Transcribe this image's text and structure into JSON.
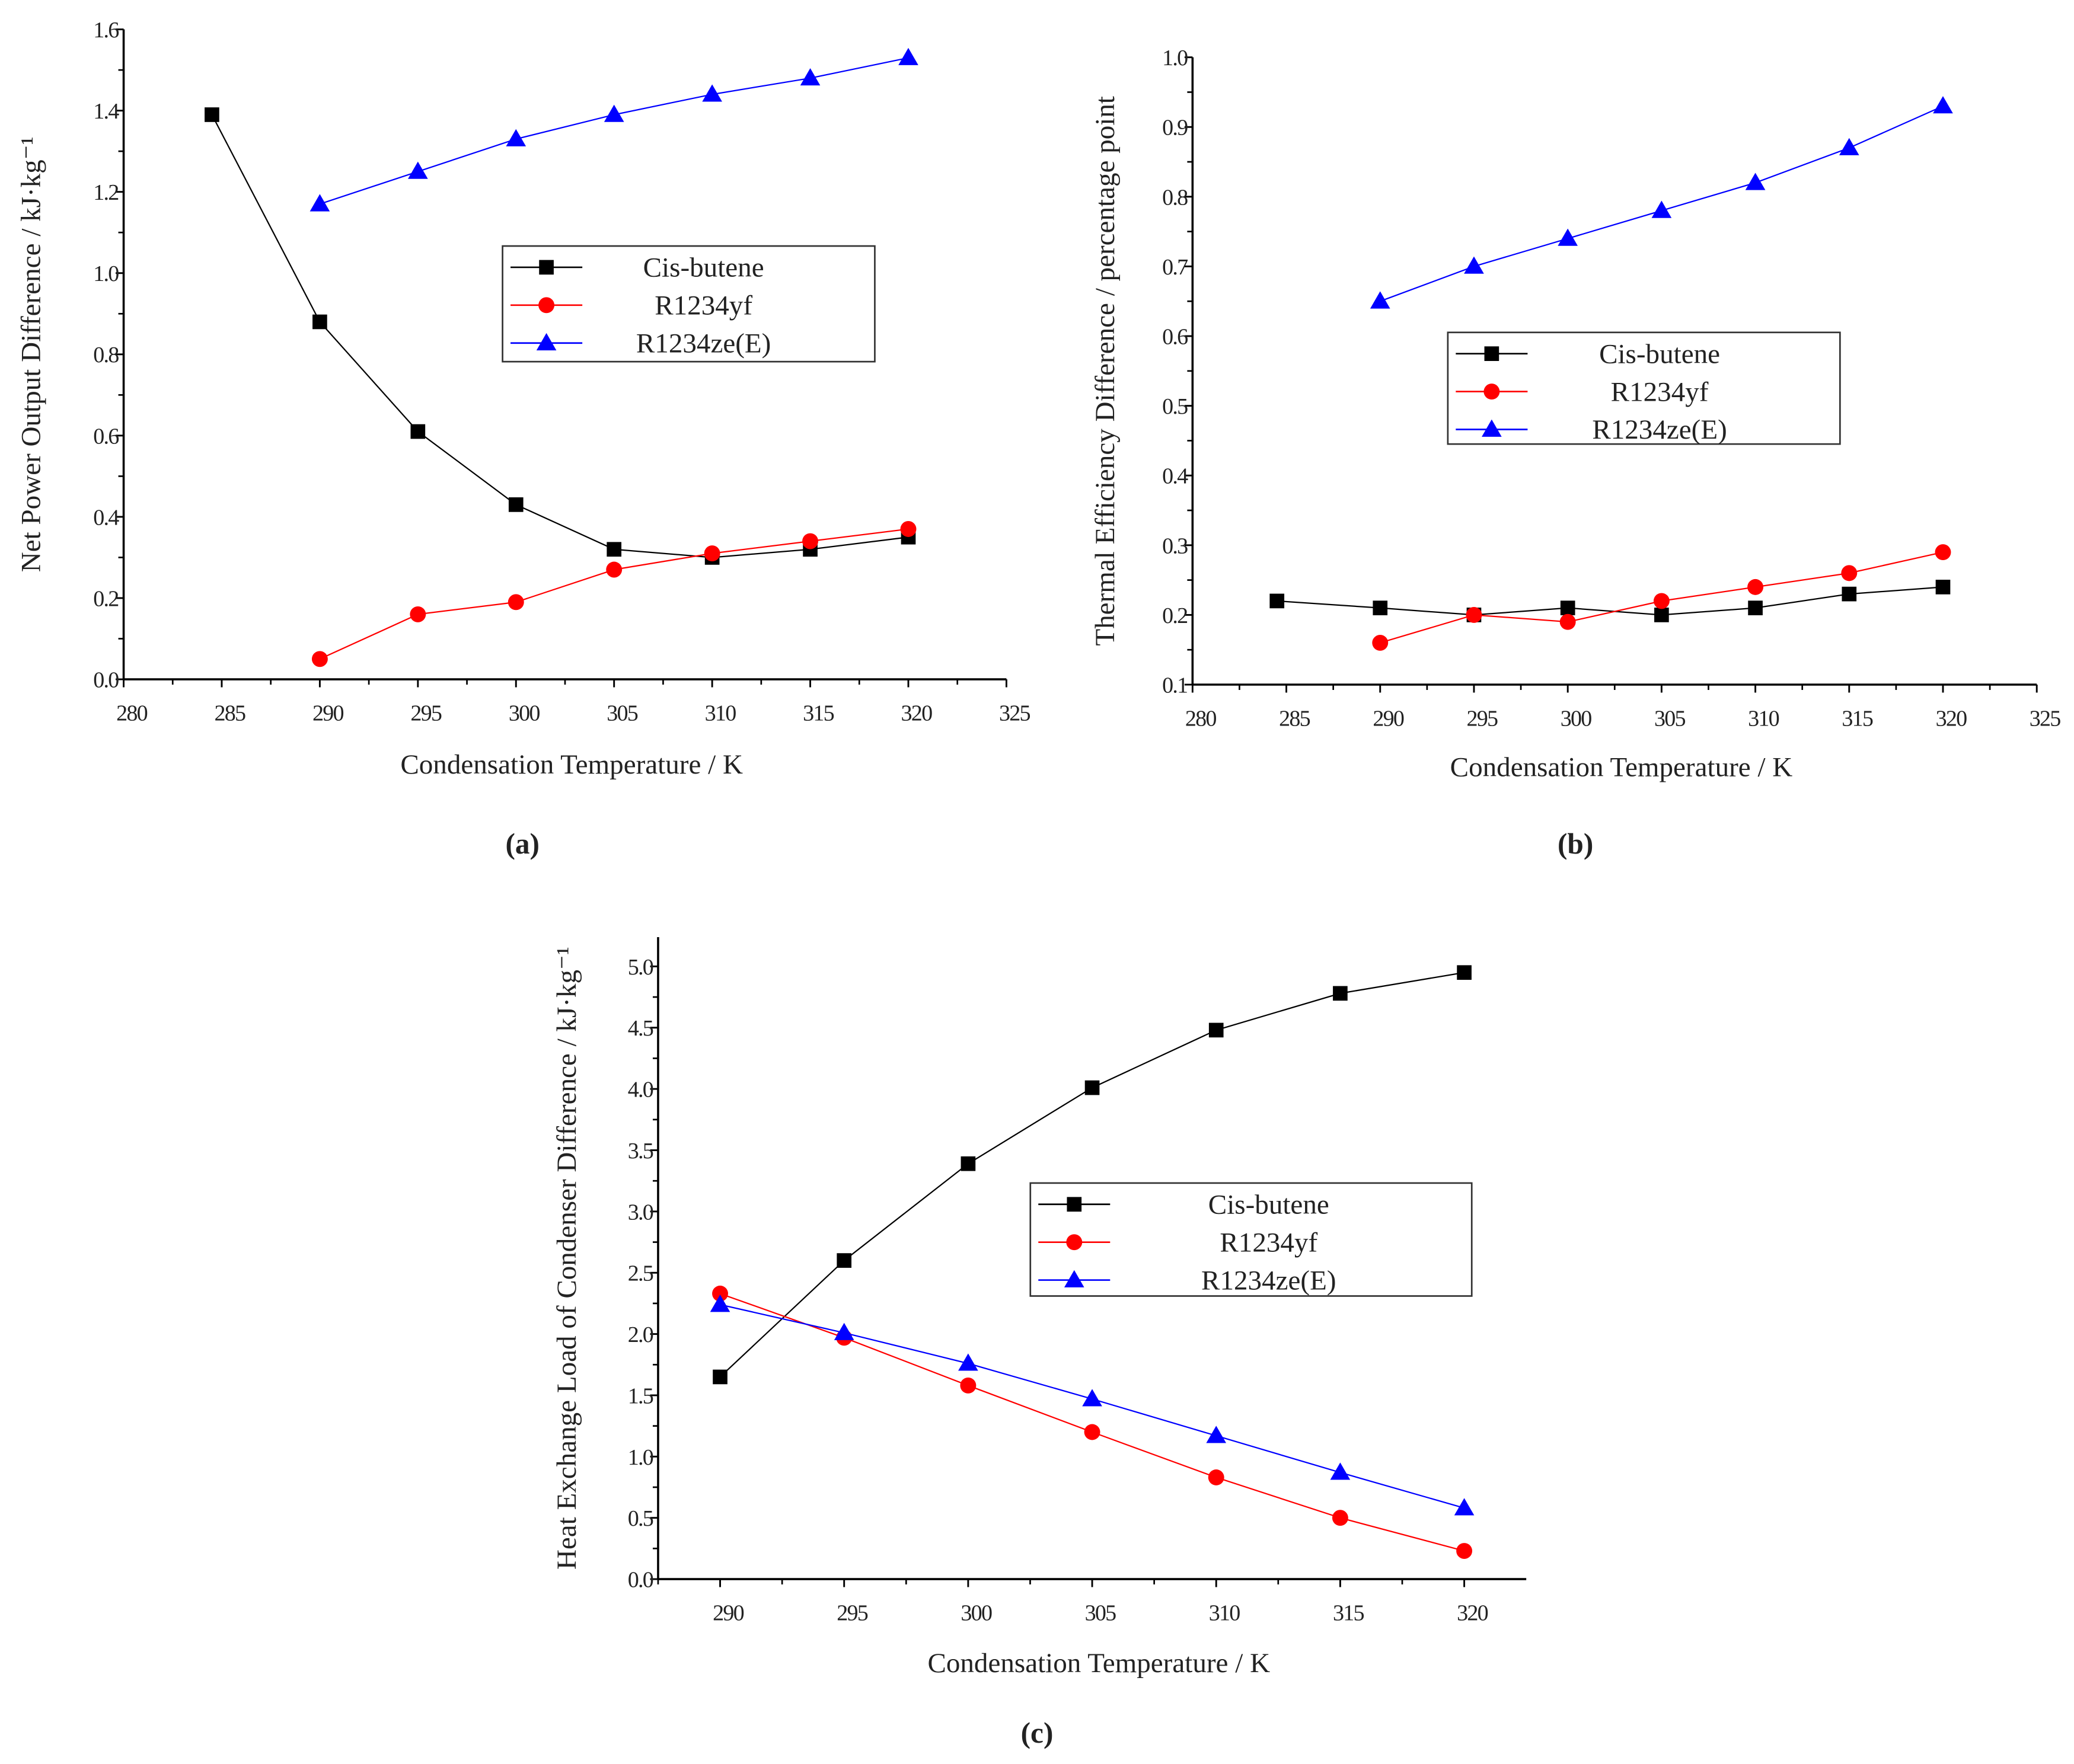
{
  "colors": {
    "Cis-butene": "#000000",
    "R1234yf": "#ff0000",
    "R1234ze(E)": "#0000ff"
  },
  "chart_data": [
    {
      "id": "a",
      "type": "line",
      "caption": "(a)",
      "xlabel": "Condensation Temperature / K",
      "ylabel": "Net Power Output Difference / kJ·kg⁻¹",
      "xlim": [
        280,
        325
      ],
      "ylim": [
        0,
        1.6
      ],
      "xticks": [
        280,
        285,
        290,
        295,
        300,
        305,
        310,
        315,
        320,
        325
      ],
      "yticks": [
        0.0,
        0.2,
        0.4,
        0.6,
        0.8,
        1.0,
        1.2,
        1.4,
        1.6
      ],
      "ytick_decimals": 1,
      "legend_position": "center-right",
      "grid": false,
      "series": [
        {
          "name": "Cis-butene",
          "marker": "square",
          "x": [
            284.5,
            290,
            295,
            300,
            305,
            310,
            315,
            320
          ],
          "y": [
            1.39,
            0.88,
            0.61,
            0.43,
            0.32,
            0.3,
            0.32,
            0.35
          ]
        },
        {
          "name": "R1234yf",
          "marker": "circle",
          "x": [
            290,
            295,
            300,
            305,
            310,
            315,
            320
          ],
          "y": [
            0.05,
            0.16,
            0.19,
            0.27,
            0.31,
            0.34,
            0.37
          ]
        },
        {
          "name": "R1234ze(E)",
          "marker": "triangle",
          "x": [
            290,
            295,
            300,
            305,
            310,
            315,
            320
          ],
          "y": [
            1.17,
            1.25,
            1.33,
            1.39,
            1.44,
            1.48,
            1.53
          ]
        }
      ]
    },
    {
      "id": "b",
      "type": "line",
      "caption": "(b)",
      "xlabel": "Condensation Temperature / K",
      "ylabel": "Thermal Efficiency Difference / percentage point",
      "xlim": [
        280,
        325
      ],
      "ylim": [
        0.1,
        1.0
      ],
      "xticks": [
        280,
        285,
        290,
        295,
        300,
        305,
        310,
        315,
        320,
        325
      ],
      "yticks": [
        0.1,
        0.2,
        0.3,
        0.4,
        0.5,
        0.6,
        0.7,
        0.8,
        0.9,
        1.0
      ],
      "ytick_decimals": 1,
      "legend_position": "center",
      "grid": false,
      "series": [
        {
          "name": "Cis-butene",
          "marker": "square",
          "x": [
            284.5,
            290,
            295,
            300,
            305,
            310,
            315,
            320
          ],
          "y": [
            0.22,
            0.21,
            0.2,
            0.21,
            0.2,
            0.21,
            0.23,
            0.24
          ]
        },
        {
          "name": "R1234yf",
          "marker": "circle",
          "x": [
            290,
            295,
            300,
            305,
            310,
            315,
            320
          ],
          "y": [
            0.16,
            0.2,
            0.19,
            0.22,
            0.24,
            0.26,
            0.29
          ]
        },
        {
          "name": "R1234ze(E)",
          "marker": "triangle",
          "x": [
            290,
            295,
            300,
            305,
            310,
            315,
            320
          ],
          "y": [
            0.65,
            0.7,
            0.74,
            0.78,
            0.82,
            0.87,
            0.93
          ]
        }
      ]
    },
    {
      "id": "c",
      "type": "line",
      "caption": "(c)",
      "xlabel": "Condensation Temperature / K",
      "ylabel": "Heat Exchange Load of Condenser Difference / kJ·kg⁻¹",
      "xlim": [
        287.5,
        322.5
      ],
      "ylim": [
        0,
        5.25
      ],
      "xticks": [
        290,
        295,
        300,
        305,
        310,
        315,
        320
      ],
      "yticks": [
        0.0,
        0.5,
        1.0,
        1.5,
        2.0,
        2.5,
        3.0,
        3.5,
        4.0,
        4.5,
        5.0
      ],
      "ytick_decimals": 1,
      "legend_position": "center-right",
      "grid": false,
      "series": [
        {
          "name": "Cis-butene",
          "marker": "square",
          "x": [
            290,
            295,
            300,
            305,
            310,
            315,
            320
          ],
          "y": [
            1.65,
            2.6,
            3.39,
            4.01,
            4.48,
            4.78,
            4.95
          ]
        },
        {
          "name": "R1234yf",
          "marker": "circle",
          "x": [
            290,
            295,
            300,
            305,
            310,
            315,
            320
          ],
          "y": [
            2.33,
            1.97,
            1.58,
            1.2,
            0.83,
            0.5,
            0.23
          ]
        },
        {
          "name": "R1234ze(E)",
          "marker": "triangle",
          "x": [
            290,
            295,
            300,
            305,
            310,
            315,
            320
          ],
          "y": [
            2.24,
            2.01,
            1.76,
            1.47,
            1.17,
            0.87,
            0.58
          ]
        }
      ]
    }
  ]
}
